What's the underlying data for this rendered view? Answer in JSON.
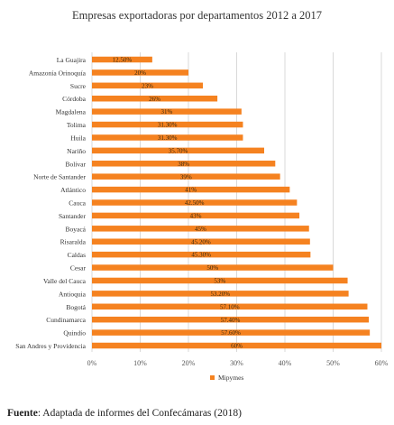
{
  "chart_data": {
    "type": "bar",
    "orientation": "horizontal",
    "title": "Empresas exportadoras por departamentos 2012 a 2017",
    "categories": [
      "La Guajira",
      "Amazonía Orinoquía",
      "Sucre",
      "Córdoba",
      "Magdalena",
      "Tolima",
      "Huila",
      "Nariño",
      "Bolívar",
      "Norte de Santander",
      "Atlántico",
      "Cauca",
      "Santander",
      "Boyacá",
      "Risaralda",
      "Caldas",
      "Cesar",
      "Valle del Cauca",
      "Antioquia",
      "Bogotá",
      "Cundinamarca",
      "Quindío",
      "San Andres y Providencia"
    ],
    "series": [
      {
        "name": "Mipymes",
        "color": "#f58220",
        "values": [
          12.5,
          20,
          23,
          26,
          31,
          31.3,
          31.3,
          35.7,
          38,
          39,
          41,
          42.5,
          43,
          45,
          45.2,
          45.3,
          50,
          53,
          53.2,
          57.1,
          57.4,
          57.6,
          60
        ],
        "labels": [
          "12.50%",
          "20%",
          "23%",
          "26%",
          "31%",
          "31.30%",
          "31.30%",
          "35.70%",
          "38%",
          "39%",
          "41%",
          "42.50%",
          "43%",
          "45%",
          "45.20%",
          "45.30%",
          "50%",
          "53%",
          "53.20%",
          "57.10%",
          "57.40%",
          "57.60%",
          "60%"
        ]
      }
    ],
    "xlim": [
      0,
      60
    ],
    "xticks": [
      0,
      10,
      20,
      30,
      40,
      50,
      60
    ],
    "xtick_labels": [
      "0%",
      "10%",
      "20%",
      "30%",
      "40%",
      "50%",
      "60%"
    ],
    "grid": true,
    "legend_position": "bottom"
  },
  "source": {
    "label": "Fuente",
    "text": ": Adaptada de informes del Confecámaras (2018)"
  }
}
